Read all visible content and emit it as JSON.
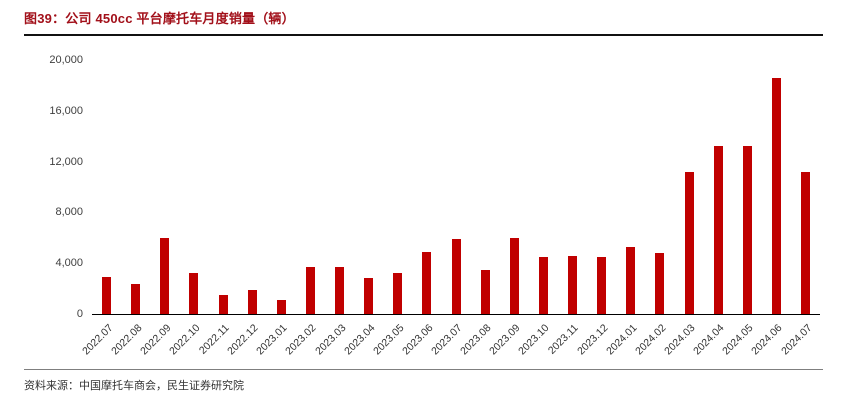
{
  "header": {
    "title": "图39：公司 450cc 平台摩托车月度销量（辆）"
  },
  "footer": {
    "source": "资料来源：中国摩托车商会，民生证券研究院"
  },
  "colors": {
    "bar": "#c00000",
    "title_accent": "#a2101a",
    "axis_line": "#000000"
  },
  "chart_data": {
    "type": "bar",
    "title": "公司 450cc 平台摩托车月度销量（辆）",
    "xlabel": "",
    "ylabel": "",
    "ylim": [
      0,
      20000
    ],
    "grid": false,
    "legend_position": "none",
    "categories": [
      "2022.07",
      "2022.08",
      "2022.09",
      "2022.10",
      "2022.11",
      "2022.12",
      "2023.01",
      "2023.02",
      "2023.03",
      "2023.04",
      "2023.05",
      "2023.06",
      "2023.07",
      "2023.08",
      "2023.09",
      "2023.10",
      "2023.11",
      "2023.12",
      "2024.01",
      "2024.02",
      "2024.03",
      "2024.04",
      "2024.05",
      "2024.06",
      "2024.07"
    ],
    "values": [
      2900,
      2400,
      6000,
      3200,
      1500,
      1900,
      1100,
      3700,
      3700,
      2800,
      3200,
      4900,
      5900,
      3500,
      6000,
      4500,
      4600,
      4500,
      5300,
      4800,
      11200,
      13200,
      13200,
      18600,
      11200
    ],
    "ytick_values": [
      0,
      4000,
      8000,
      12000,
      16000,
      20000
    ],
    "ytick_labels": [
      "0",
      "4,000",
      "8,000",
      "12,000",
      "16,000",
      "20,000"
    ]
  }
}
